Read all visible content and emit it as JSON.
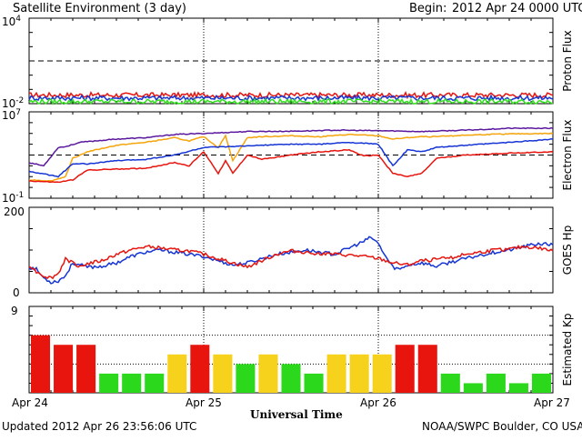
{
  "header": {
    "title": "Satellite Environment (3 day)",
    "begin_label": "Begin:",
    "begin_value": "2012 Apr 24 0000 UTC"
  },
  "footer": {
    "updated": "Updated 2012 Apr 26 23:56:06 UTC",
    "credit": "NOAA/SWPC Boulder, CO USA",
    "xlabel": "Universal Time"
  },
  "x_ticks": [
    "Apr 24",
    "Apr 25",
    "Apr 26",
    "Apr 27"
  ],
  "colors": {
    "red": "#e8140e",
    "blue": "#1535d6",
    "green": "#2ee01a",
    "orange": "#f5a40a",
    "purple": "#5a189e",
    "yellow": "#f7d21c",
    "bar_green": "#2bd81b"
  },
  "chart_data": [
    {
      "type": "line",
      "title": "",
      "ylabel": "Proton Flux",
      "yscale": "log",
      "ylim": [
        0.01,
        10000
      ],
      "yticks": [
        "10^-2",
        "10^4"
      ],
      "threshold": 10,
      "xlim": [
        0,
        72
      ],
      "x_unit": "hours since 2012 Apr 24 0000 UTC",
      "series": [
        {
          "color": "red",
          "approx_value": 0.04
        },
        {
          "color": "blue",
          "approx_value": 0.025
        },
        {
          "color": "green",
          "approx_value": 0.014
        }
      ]
    },
    {
      "type": "line",
      "title": "",
      "ylabel": "Electron Flux",
      "yscale": "log",
      "ylim": [
        0.1,
        10000000
      ],
      "yticks": [
        "10^-1",
        "10^7"
      ],
      "threshold": 1000,
      "xlim": [
        0,
        72
      ],
      "series": [
        {
          "color": "purple",
          "x": [
            0,
            2,
            4,
            5,
            7,
            9,
            12,
            16,
            20,
            24,
            30,
            36,
            42,
            48,
            54,
            60,
            66,
            72
          ],
          "y": [
            200,
            100,
            5000,
            6000,
            15000,
            20000,
            30000,
            40000,
            80000,
            100000,
            150000,
            160000,
            200000,
            180000,
            150000,
            200000,
            300000,
            300000
          ]
        },
        {
          "color": "orange",
          "x": [
            0,
            3,
            5,
            6,
            8,
            12,
            16,
            20,
            22,
            24,
            26,
            27,
            28,
            30,
            32,
            36,
            40,
            44,
            48,
            50,
            52,
            54,
            56,
            60,
            66,
            72
          ],
          "y": [
            5,
            4,
            10,
            500,
            2000,
            8000,
            15000,
            40000,
            20000,
            50000,
            5000,
            60000,
            300,
            40000,
            50000,
            60000,
            50000,
            80000,
            60000,
            30000,
            40000,
            50000,
            50000,
            70000,
            90000,
            100000
          ]
        },
        {
          "color": "blue",
          "x": [
            0,
            4,
            6,
            8,
            12,
            16,
            20,
            24,
            28,
            32,
            36,
            40,
            44,
            48,
            50,
            52,
            54,
            56,
            60,
            66,
            72
          ],
          "y": [
            30,
            10,
            150,
            150,
            300,
            400,
            1000,
            5000,
            6000,
            8000,
            10000,
            10000,
            15000,
            10000,
            100,
            3000,
            2000,
            5000,
            8000,
            15000,
            30000
          ]
        },
        {
          "color": "red",
          "x": [
            0,
            4,
            6,
            8,
            12,
            16,
            20,
            22,
            24,
            26,
            27,
            28,
            30,
            32,
            36,
            40,
            44,
            46,
            48,
            50,
            52,
            54,
            56,
            60,
            66,
            72
          ],
          "y": [
            4,
            3,
            5,
            40,
            50,
            60,
            200,
            100,
            2000,
            20,
            300,
            20,
            1000,
            400,
            1000,
            2000,
            3000,
            800,
            1000,
            20,
            10,
            20,
            500,
            1000,
            1500,
            2000
          ]
        }
      ]
    },
    {
      "type": "line",
      "title": "",
      "ylabel": "GOES Hp",
      "ylim": [
        0,
        200
      ],
      "yticks": [
        "0",
        "200"
      ],
      "xlim": [
        0,
        72
      ],
      "series": [
        {
          "color": "blue",
          "x": [
            0,
            1,
            2,
            3,
            4,
            5,
            6,
            7,
            8,
            10,
            12,
            14,
            16,
            18,
            20,
            22,
            24,
            26,
            28,
            30,
            32,
            34,
            36,
            38,
            40,
            42,
            44,
            46,
            47,
            48,
            49,
            50,
            51,
            52,
            54,
            56,
            58,
            60,
            62,
            64,
            66,
            68,
            70,
            72
          ],
          "y": [
            60,
            55,
            35,
            25,
            28,
            40,
            70,
            65,
            60,
            62,
            70,
            85,
            95,
            100,
            95,
            90,
            85,
            75,
            65,
            70,
            80,
            90,
            95,
            100,
            95,
            90,
            105,
            120,
            130,
            115,
            85,
            60,
            55,
            65,
            70,
            62,
            72,
            80,
            88,
            95,
            100,
            108,
            115,
            112
          ]
        },
        {
          "color": "red",
          "x": [
            0,
            1,
            2,
            3,
            4,
            5,
            6,
            7,
            8,
            10,
            12,
            14,
            16,
            18,
            20,
            22,
            24,
            26,
            28,
            30,
            32,
            34,
            36,
            38,
            40,
            42,
            44,
            46,
            48,
            50,
            52,
            54,
            56,
            58,
            60,
            62,
            64,
            66,
            68,
            70,
            72
          ],
          "y": [
            65,
            50,
            40,
            35,
            45,
            80,
            70,
            62,
            68,
            75,
            90,
            100,
            108,
            105,
            100,
            98,
            90,
            80,
            70,
            60,
            75,
            90,
            98,
            95,
            92,
            90,
            88,
            85,
            80,
            70,
            65,
            75,
            78,
            82,
            90,
            95,
            100,
            102,
            108,
            105,
            98
          ]
        }
      ]
    },
    {
      "type": "bar",
      "title": "",
      "ylabel": "Estimated Kp",
      "ylim": [
        0,
        9
      ],
      "yticks": [
        "9"
      ],
      "bar_hours": 3,
      "values": [
        6,
        5,
        5,
        2,
        2,
        2,
        4,
        5,
        4,
        3,
        4,
        3,
        2,
        4,
        4,
        4,
        5,
        5,
        2,
        1,
        2,
        1,
        2
      ],
      "bar_colors": [
        "red",
        "red",
        "red",
        "green",
        "green",
        "green",
        "yellow",
        "red",
        "yellow",
        "green",
        "yellow",
        "green",
        "green",
        "yellow",
        "yellow",
        "yellow",
        "red",
        "red",
        "green",
        "green",
        "green",
        "green",
        "green"
      ]
    }
  ]
}
